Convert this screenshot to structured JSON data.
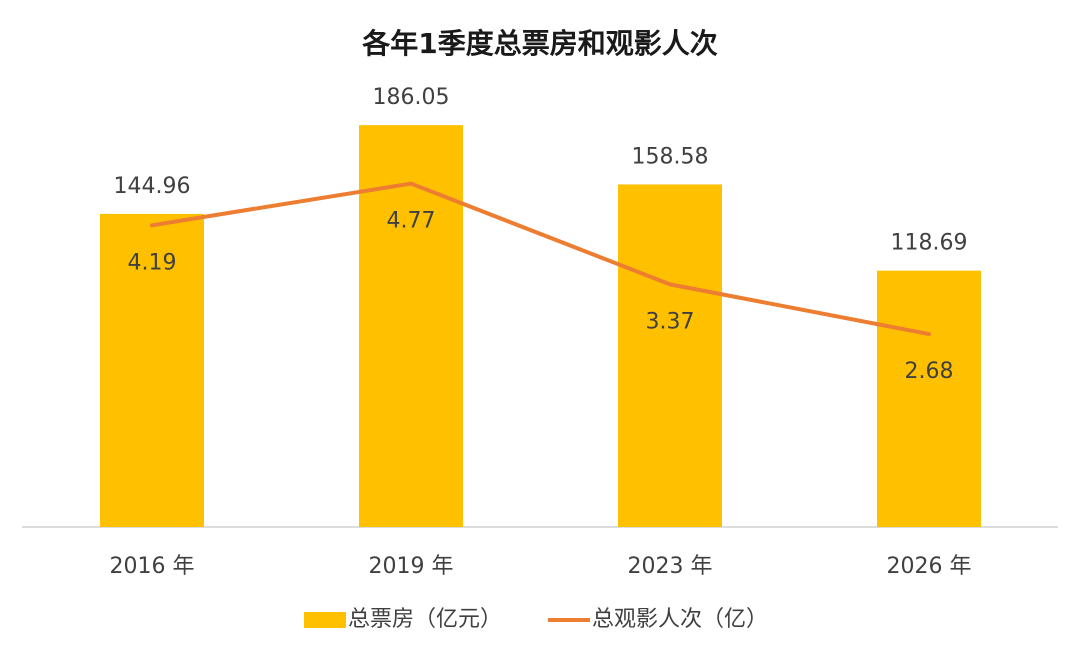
{
  "chart_data": {
    "type": "bar",
    "title": "各年1季度总票房和观影人次",
    "categories": [
      "2016 年",
      "2019 年",
      "2023 年",
      "2026 年"
    ],
    "series": [
      {
        "name": "总票房（亿元）",
        "type": "bar",
        "color": "#FFC000",
        "values": [
          144.96,
          186.05,
          158.58,
          118.69
        ]
      },
      {
        "name": "总观影人次（亿）",
        "type": "line",
        "axis": "y2",
        "color": "#ED7D31",
        "values": [
          4.19,
          4.77,
          3.37,
          2.68
        ]
      }
    ],
    "ylim": [
      0,
      200
    ],
    "y2lim": [
      0,
      6
    ],
    "legend": "bottom"
  }
}
